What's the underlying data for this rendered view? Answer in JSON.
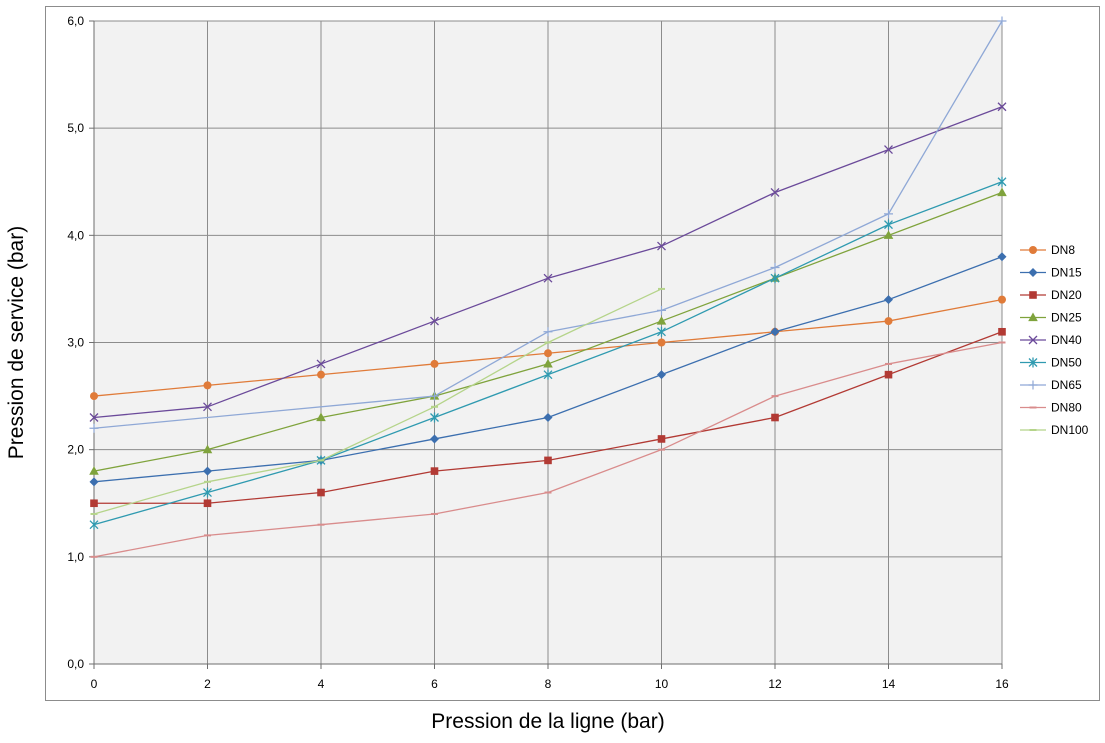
{
  "chart_data": {
    "type": "line",
    "title": "",
    "xlabel": "Pression de la ligne (bar)",
    "ylabel": "Pression de service (bar)",
    "xlim": [
      0,
      16
    ],
    "ylim": [
      0,
      6
    ],
    "x_ticks": [
      0,
      2,
      4,
      6,
      8,
      10,
      12,
      14,
      16
    ],
    "x_tick_labels": [
      "0",
      "2",
      "4",
      "6",
      "8",
      "10",
      "12",
      "14",
      "16"
    ],
    "y_ticks": [
      0,
      1,
      2,
      3,
      4,
      5,
      6
    ],
    "y_tick_labels": [
      "0,0",
      "1,0",
      "2,0",
      "3,0",
      "4,0",
      "5,0",
      "6,0"
    ],
    "grid": true,
    "legend_position": "right",
    "plot_background": "#f2f2f2",
    "grid_color": "#8c8c8c",
    "series": [
      {
        "name": "DN8",
        "color": "#e07b39",
        "marker": "circle",
        "x": [
          0,
          2,
          4,
          6,
          8,
          10,
          12,
          14,
          16
        ],
        "y": [
          2.5,
          2.6,
          2.7,
          2.8,
          2.9,
          3.0,
          3.1,
          3.2,
          3.4
        ]
      },
      {
        "name": "DN15",
        "color": "#3c6faf",
        "marker": "diamond",
        "x": [
          0,
          2,
          4,
          6,
          8,
          10,
          12,
          14,
          16
        ],
        "y": [
          1.7,
          1.8,
          1.9,
          2.1,
          2.3,
          2.7,
          3.1,
          3.4,
          3.8
        ]
      },
      {
        "name": "DN20",
        "color": "#b23a34",
        "marker": "square",
        "x": [
          0,
          2,
          4,
          6,
          8,
          10,
          12,
          14,
          16
        ],
        "y": [
          1.5,
          1.5,
          1.6,
          1.8,
          1.9,
          2.1,
          2.3,
          2.7,
          3.1
        ]
      },
      {
        "name": "DN25",
        "color": "#7fa33c",
        "marker": "triangle",
        "x": [
          0,
          2,
          4,
          6,
          8,
          10,
          12,
          14,
          16
        ],
        "y": [
          1.8,
          2.0,
          2.3,
          2.5,
          2.8,
          3.2,
          3.6,
          4.0,
          4.4
        ]
      },
      {
        "name": "DN40",
        "color": "#6b4a9a",
        "marker": "x",
        "x": [
          0,
          2,
          4,
          6,
          8,
          10,
          12,
          14,
          16
        ],
        "y": [
          2.3,
          2.4,
          2.8,
          3.2,
          3.6,
          3.9,
          4.4,
          4.8,
          5.2
        ]
      },
      {
        "name": "DN50",
        "color": "#2f9ab0",
        "marker": "star",
        "x": [
          0,
          2,
          4,
          6,
          8,
          10,
          12,
          14,
          16
        ],
        "y": [
          1.3,
          1.6,
          1.9,
          2.3,
          2.7,
          3.1,
          3.6,
          4.1,
          4.5
        ]
      },
      {
        "name": "DN65",
        "color": "#8fa8d6",
        "marker": "plus",
        "x": [
          0,
          6,
          8,
          10,
          12,
          14,
          16
        ],
        "y": [
          2.2,
          2.5,
          3.1,
          3.3,
          3.7,
          4.2,
          6.0
        ]
      },
      {
        "name": "DN80",
        "color": "#d98c8c",
        "marker": "dash",
        "x": [
          0,
          2,
          4,
          6,
          8,
          10,
          12,
          14,
          16
        ],
        "y": [
          1.0,
          1.2,
          1.3,
          1.4,
          1.6,
          2.0,
          2.5,
          2.8,
          3.0
        ]
      },
      {
        "name": "DN100",
        "color": "#b5d48a",
        "marker": "dash",
        "x": [
          0,
          2,
          4,
          6,
          8,
          10
        ],
        "y": [
          1.4,
          1.7,
          1.9,
          2.4,
          3.0,
          3.5
        ]
      }
    ]
  }
}
